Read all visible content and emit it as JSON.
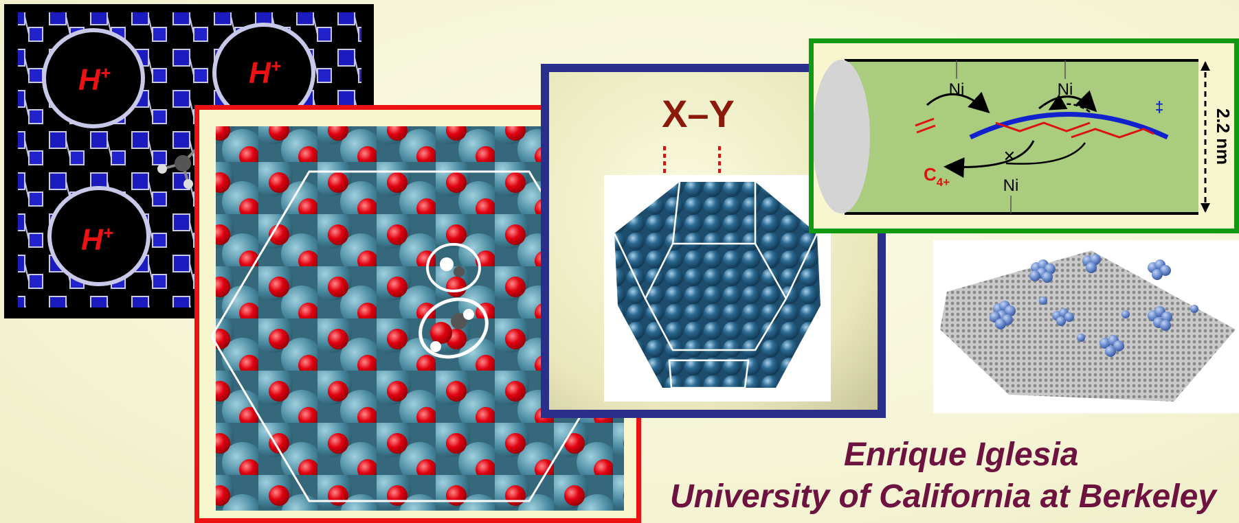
{
  "zeolite": {
    "proton_labels": [
      "H",
      "H",
      "H"
    ],
    "proton_charge": "+",
    "colors": {
      "framework": "#2222cc",
      "edge": "#c8c8e8",
      "label": "#ee1111"
    }
  },
  "surface": {
    "colors": {
      "metal": "#4a8aa0",
      "oxygen": "#e00010",
      "carbon": "#555555",
      "hydrogen": "#f0f0f0",
      "border": "#ee1111"
    }
  },
  "cluster": {
    "reaction_label": "X–Y",
    "colors": {
      "sphere": "#2c6a92",
      "label": "#8b1a0a",
      "frame": "#2b2f8c"
    }
  },
  "tube": {
    "ni_labels": [
      "Ni",
      "Ni",
      "Ni"
    ],
    "product_label": "C",
    "product_subscript": "4+",
    "ts_symbol": "‡",
    "diameter_label": "2.2 nm",
    "colors": {
      "tube": "#a9cc7e",
      "arc": "#1122cc",
      "chain": "#dd1111",
      "border": "#119911"
    }
  },
  "graphene": {
    "colors": {
      "sheet": "#9a9a9a",
      "cluster": "#6f8fd0"
    }
  },
  "author": {
    "name": "Enrique Iglesia",
    "affiliation": "University of California at Berkeley"
  }
}
